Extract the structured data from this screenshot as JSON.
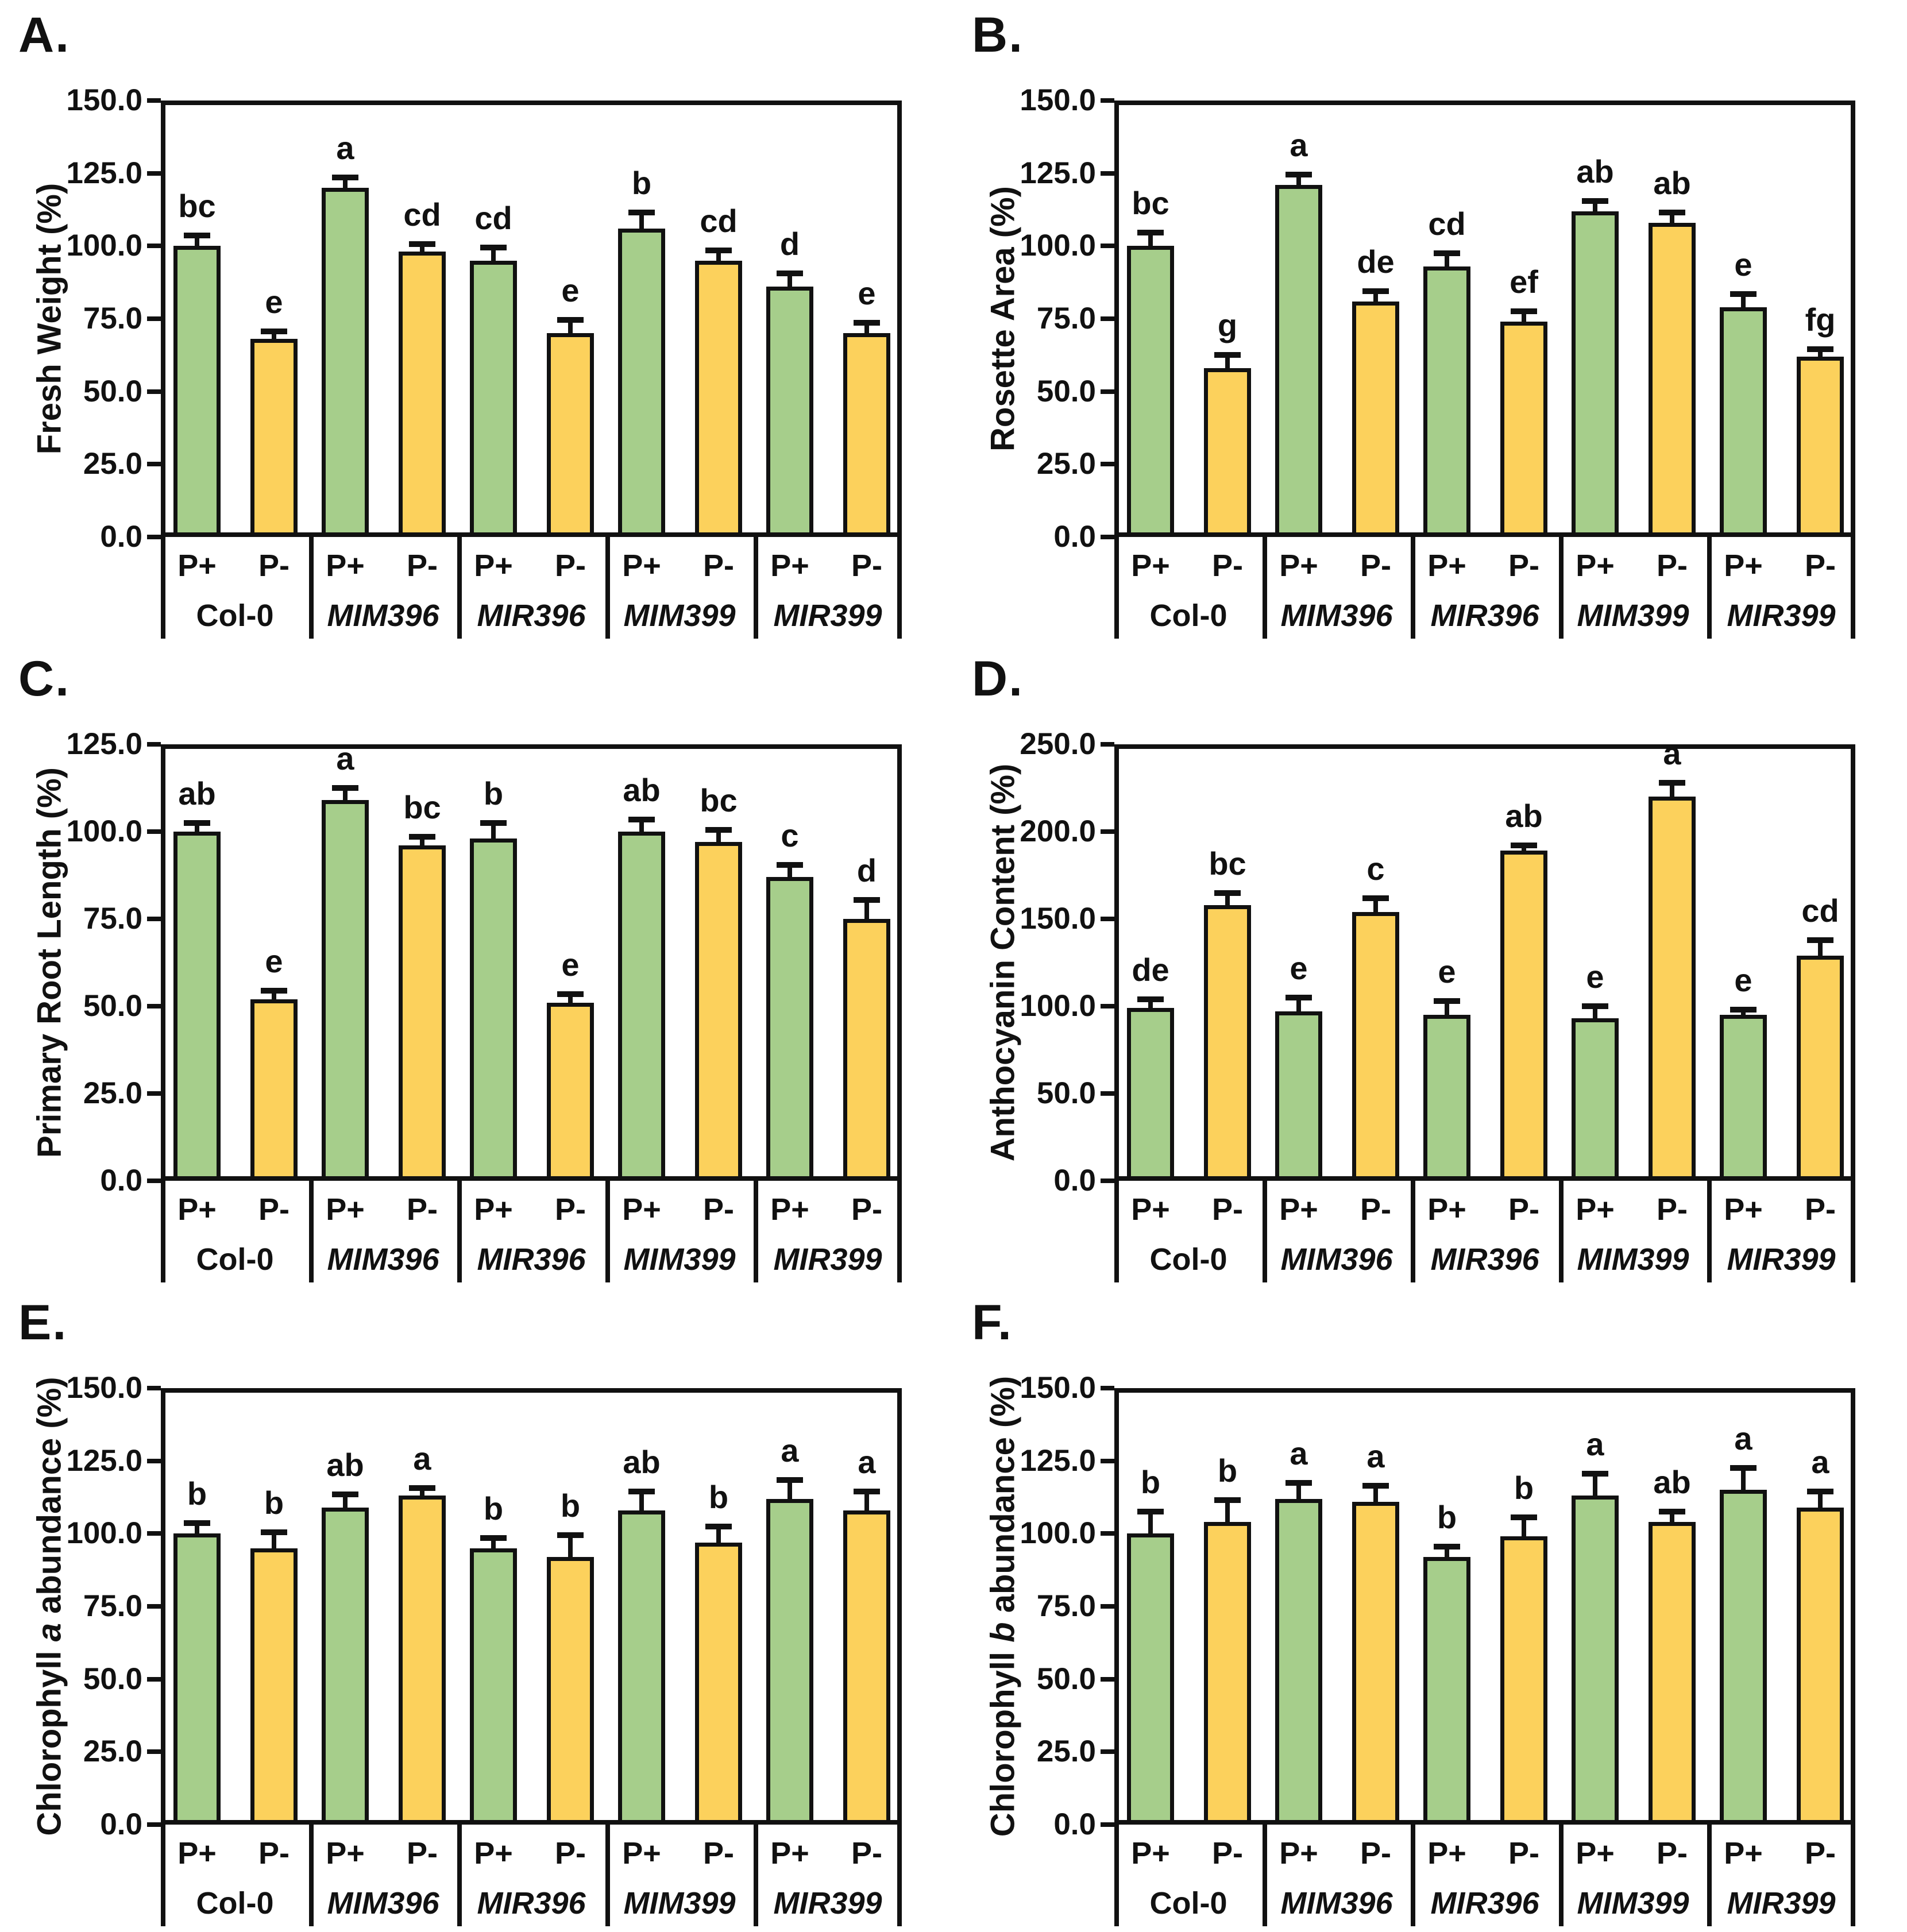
{
  "figure_title": "",
  "colors": {
    "p_plus_fill": "#A6CE8B",
    "p_minus_fill": "#FCD15C",
    "outline": "#111111"
  },
  "conditions": [
    "P+",
    "P-"
  ],
  "genotypes": [
    {
      "label": "Col-0",
      "italic": false
    },
    {
      "label": "MIM396",
      "italic": true
    },
    {
      "label": "MIR396",
      "italic": true
    },
    {
      "label": "MIM399",
      "italic": true
    },
    {
      "label": "MIR399",
      "italic": true
    }
  ],
  "chart_data": [
    {
      "type": "bar",
      "panel_label": "A.",
      "ylabel": "Fresh Weight (%)",
      "ylabel_parts": [
        {
          "text": "Fresh Weight (%)",
          "italic": false
        }
      ],
      "ylim": [
        0,
        150
      ],
      "ystep": 25,
      "grid": false,
      "categories": [
        "Col-0",
        "MIM396",
        "MIR396",
        "MIM399",
        "MIR399"
      ],
      "series": [
        {
          "name": "P+",
          "values": [
            100,
            120,
            95,
            106,
            86
          ],
          "errors": [
            3,
            3,
            4,
            5,
            4
          ],
          "letters": [
            "bc",
            "a",
            "cd",
            "b",
            "d"
          ]
        },
        {
          "name": "P-",
          "values": [
            68,
            98,
            70,
            95,
            70
          ],
          "errors": [
            2,
            2,
            4,
            3,
            3
          ],
          "letters": [
            "e",
            "cd",
            "e",
            "cd",
            "e"
          ]
        }
      ]
    },
    {
      "type": "bar",
      "panel_label": "B.",
      "ylabel": "Rosette Area (%)",
      "ylabel_parts": [
        {
          "text": "Rosette Area (%)",
          "italic": false
        }
      ],
      "ylim": [
        0,
        150
      ],
      "ystep": 25,
      "grid": false,
      "categories": [
        "Col-0",
        "MIM396",
        "MIR396",
        "MIM399",
        "MIR399"
      ],
      "series": [
        {
          "name": "P+",
          "values": [
            100,
            121,
            93,
            112,
            79
          ],
          "errors": [
            4,
            3,
            4,
            3,
            4
          ],
          "letters": [
            "bc",
            "a",
            "cd",
            "ab",
            "e"
          ]
        },
        {
          "name": "P-",
          "values": [
            58,
            81,
            74,
            108,
            62
          ],
          "errors": [
            4,
            3,
            3,
            3,
            2
          ],
          "letters": [
            "g",
            "de",
            "ef",
            "ab",
            "fg"
          ]
        }
      ]
    },
    {
      "type": "bar",
      "panel_label": "C.",
      "ylabel": "Primary Root Length (%)",
      "ylabel_parts": [
        {
          "text": "Primary Root Length (%)",
          "italic": false
        }
      ],
      "ylim": [
        0,
        125
      ],
      "ystep": 25,
      "grid": false,
      "categories": [
        "Col-0",
        "MIM396",
        "MIR396",
        "MIM399",
        "MIR399"
      ],
      "series": [
        {
          "name": "P+",
          "values": [
            100,
            109,
            98,
            100,
            87
          ],
          "errors": [
            2,
            3,
            4,
            3,
            3
          ],
          "letters": [
            "ab",
            "a",
            "b",
            "ab",
            "c"
          ]
        },
        {
          "name": "P-",
          "values": [
            52,
            96,
            51,
            97,
            75
          ],
          "errors": [
            2,
            2,
            2,
            3,
            5
          ],
          "letters": [
            "e",
            "bc",
            "e",
            "bc",
            "d"
          ]
        }
      ]
    },
    {
      "type": "bar",
      "panel_label": "D.",
      "ylabel": "Anthocyanin Content (%)",
      "ylabel_parts": [
        {
          "text": "Anthocyanin Content (%)",
          "italic": false
        }
      ],
      "ylim": [
        0,
        250
      ],
      "ystep": 50,
      "grid": false,
      "categories": [
        "Col-0",
        "MIM396",
        "MIR396",
        "MIM399",
        "MIR399"
      ],
      "series": [
        {
          "name": "P+",
          "values": [
            99,
            97,
            95,
            93,
            95
          ],
          "errors": [
            4,
            7,
            7,
            6,
            2
          ],
          "letters": [
            "de",
            "e",
            "e",
            "e",
            "e"
          ]
        },
        {
          "name": "P-",
          "values": [
            158,
            154,
            189,
            220,
            129
          ],
          "errors": [
            6,
            7,
            2,
            7,
            8
          ],
          "letters": [
            "bc",
            "c",
            "ab",
            "a",
            "cd"
          ]
        }
      ]
    },
    {
      "type": "bar",
      "panel_label": "E.",
      "ylabel": "Chlorophyll a abundance (%)",
      "ylabel_parts": [
        {
          "text": "Chlorophyll ",
          "italic": false
        },
        {
          "text": "a",
          "italic": true
        },
        {
          "text": " abundance (%)",
          "italic": false
        }
      ],
      "ylim": [
        0,
        150
      ],
      "ystep": 25,
      "grid": false,
      "categories": [
        "Col-0",
        "MIM396",
        "MIR396",
        "MIM399",
        "MIR399"
      ],
      "series": [
        {
          "name": "P+",
          "values": [
            100,
            109,
            95,
            108,
            112
          ],
          "errors": [
            3,
            4,
            3,
            6,
            6
          ],
          "letters": [
            "b",
            "ab",
            "b",
            "ab",
            "a"
          ]
        },
        {
          "name": "P-",
          "values": [
            95,
            113,
            92,
            97,
            108
          ],
          "errors": [
            5,
            2,
            7,
            5,
            6
          ],
          "letters": [
            "b",
            "a",
            "b",
            "b",
            "a"
          ]
        }
      ]
    },
    {
      "type": "bar",
      "panel_label": "F.",
      "ylabel": "Chlorophyll b abundance (%)",
      "ylabel_parts": [
        {
          "text": "Chlorophyll ",
          "italic": false
        },
        {
          "text": "b",
          "italic": true
        },
        {
          "text": " abundance (%)",
          "italic": false
        }
      ],
      "ylim": [
        0,
        150
      ],
      "ystep": 25,
      "grid": false,
      "categories": [
        "Col-0",
        "MIM396",
        "MIR396",
        "MIM399",
        "MIR399"
      ],
      "series": [
        {
          "name": "P+",
          "values": [
            100,
            112,
            92,
            113,
            115
          ],
          "errors": [
            7,
            5,
            3,
            7,
            7
          ],
          "letters": [
            "b",
            "a",
            "b",
            "a",
            "a"
          ]
        },
        {
          "name": "P-",
          "values": [
            104,
            111,
            99,
            104,
            109
          ],
          "errors": [
            7,
            5,
            6,
            3,
            5
          ],
          "letters": [
            "b",
            "a",
            "b",
            "ab",
            "a"
          ]
        }
      ]
    }
  ]
}
